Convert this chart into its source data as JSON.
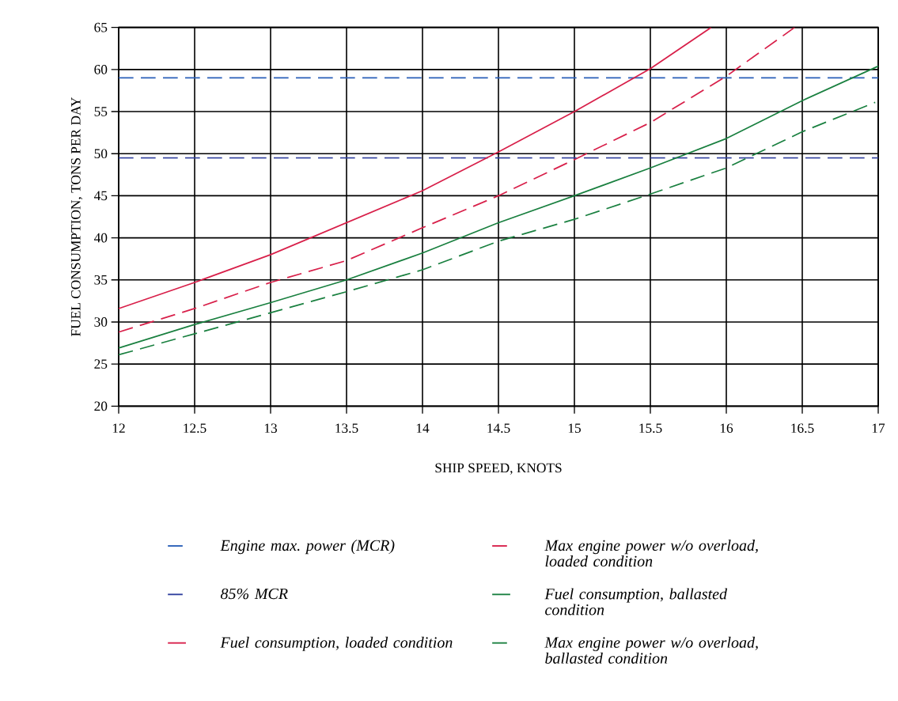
{
  "chart_data": {
    "type": "line",
    "xlabel": "SHIP SPEED, KNOTS",
    "ylabel": "FUEL CONSUMPTION, TONS PER DAY",
    "xlim": [
      12,
      17
    ],
    "ylim": [
      20,
      65
    ],
    "xticks": [
      12,
      12.5,
      13,
      13.5,
      14,
      14.5,
      15,
      15.5,
      16,
      16.5,
      17
    ],
    "yticks": [
      20,
      25,
      30,
      35,
      40,
      45,
      50,
      55,
      60,
      65
    ],
    "grid": true,
    "legend": "bottom",
    "series": [
      {
        "name": "Engine max. power (MCR)",
        "color": "#2a5fb8",
        "line_style": "dashed",
        "x": [
          12,
          17
        ],
        "values": [
          59,
          59
        ]
      },
      {
        "name": "85% MCR",
        "color": "#2f3f9e",
        "line_style": "dashed",
        "x": [
          12,
          17
        ],
        "values": [
          49.5,
          49.5
        ]
      },
      {
        "name": "Fuel consumption, loaded condition",
        "color": "#d8204a",
        "line_style": "solid",
        "x": [
          12,
          12.5,
          13,
          13.5,
          14,
          14.5,
          15,
          15.5,
          15.9
        ],
        "values": [
          31.6,
          34.7,
          38.0,
          41.8,
          45.6,
          50.2,
          55,
          60.1,
          65
        ]
      },
      {
        "name": "Max engine power w/o overload, loaded condition",
        "color": "#d8204a",
        "line_style": "dashed",
        "x": [
          12,
          12.5,
          13,
          13.5,
          14,
          14.5,
          15,
          15.5,
          16,
          16.45
        ],
        "values": [
          28.8,
          31.6,
          34.7,
          37.3,
          41.2,
          45,
          49.3,
          53.7,
          59.2,
          65
        ]
      },
      {
        "name": "Fuel consumption, ballasted condition",
        "color": "#1a8040",
        "line_style": "solid",
        "x": [
          12,
          12.5,
          13,
          13.5,
          14,
          14.5,
          15,
          15.5,
          16,
          16.5,
          17
        ],
        "values": [
          26.9,
          29.7,
          32.3,
          35,
          38.2,
          41.8,
          45,
          48.3,
          51.8,
          56.3,
          60.4
        ]
      },
      {
        "name": "Max engine power w/o overload, ballasted condition",
        "color": "#1a8040",
        "line_style": "dashed",
        "x": [
          12,
          12.5,
          13,
          13.5,
          14,
          14.5,
          15,
          15.5,
          16,
          16.5,
          16.98
        ],
        "values": [
          26.1,
          28.6,
          31.1,
          33.6,
          36.2,
          39.6,
          42.2,
          45.2,
          48.3,
          52.6,
          56.1
        ]
      }
    ]
  }
}
